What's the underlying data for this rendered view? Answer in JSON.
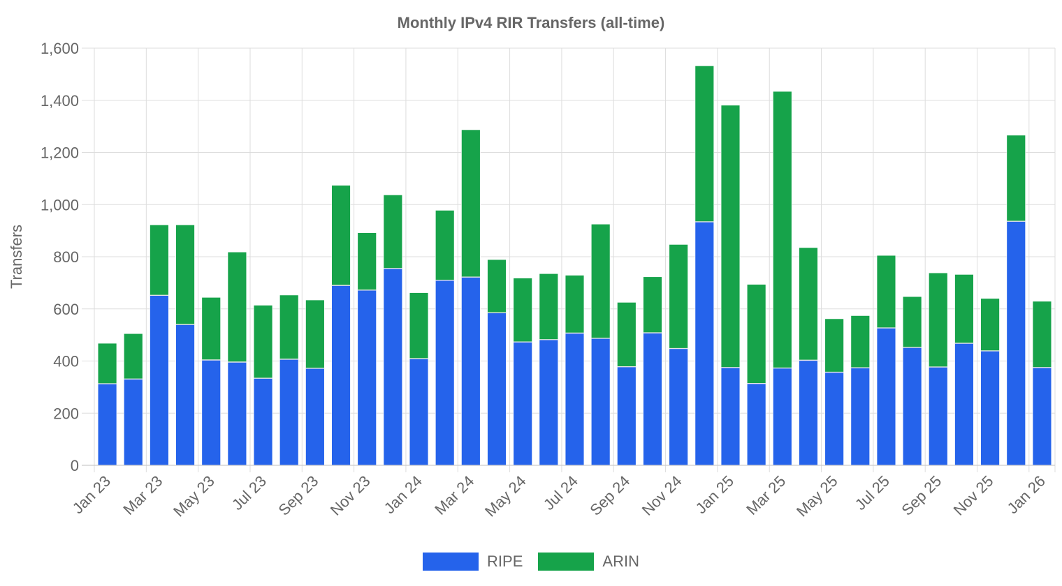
{
  "chart_data": {
    "type": "bar",
    "stacked": true,
    "title": "Monthly IPv4 RIR Transfers (all-time)",
    "xlabel": "",
    "ylabel": "Transfers",
    "ylim": [
      0,
      1600
    ],
    "yticks": [
      "0",
      "200",
      "400",
      "600",
      "800",
      "1,000",
      "1,200",
      "1,400",
      "1,600"
    ],
    "ytick_values": [
      0,
      200,
      400,
      600,
      800,
      1000,
      1200,
      1400,
      1600
    ],
    "grid": true,
    "legend": "bottom",
    "categories": [
      "Jan 23",
      "Feb 23",
      "Mar 23",
      "Apr 23",
      "May 23",
      "Jun 23",
      "Jul 23",
      "Aug 23",
      "Sep 23",
      "Oct 23",
      "Nov 23",
      "Dec 23",
      "Jan 24",
      "Feb 24",
      "Mar 24",
      "Apr 24",
      "May 24",
      "Jun 24",
      "Jul 24",
      "Aug 24",
      "Sep 24",
      "Oct 24",
      "Nov 24",
      "Dec 24",
      "Jan 25",
      "Feb 25",
      "Mar 25",
      "Apr 25",
      "May 25",
      "Jun 25",
      "Jul 25",
      "Aug 25",
      "Sep 25",
      "Oct 25",
      "Nov 25",
      "Dec 25",
      "Jan 26"
    ],
    "xtick_labels": [
      "Jan 23",
      "Mar 23",
      "May 23",
      "Jul 23",
      "Sep 23",
      "Nov 23",
      "Jan 24",
      "Mar 24",
      "May 24",
      "Jul 24",
      "Sep 24",
      "Nov 24",
      "Jan 25",
      "Mar 25",
      "May 25",
      "Jul 25",
      "Sep 25",
      "Nov 25",
      "Jan 26"
    ],
    "series": [
      {
        "name": "RIPE",
        "color": "#2563EB",
        "values": [
          313,
          331,
          652,
          540,
          404,
          396,
          334,
          407,
          372,
          690,
          672,
          755,
          409,
          710,
          722,
          585,
          473,
          482,
          507,
          487,
          378,
          508,
          448,
          934,
          375,
          314,
          373,
          403,
          357,
          374,
          527,
          452,
          377,
          468,
          439,
          936,
          375
        ]
      },
      {
        "name": "ARIN",
        "color": "#16A34A",
        "values": [
          155,
          174,
          270,
          382,
          240,
          422,
          280,
          246,
          262,
          384,
          220,
          282,
          253,
          268,
          565,
          204,
          245,
          253,
          222,
          438,
          247,
          215,
          399,
          598,
          1006,
          380,
          1061,
          432,
          205,
          200,
          278,
          195,
          361,
          264,
          201,
          330,
          254
        ]
      }
    ]
  }
}
